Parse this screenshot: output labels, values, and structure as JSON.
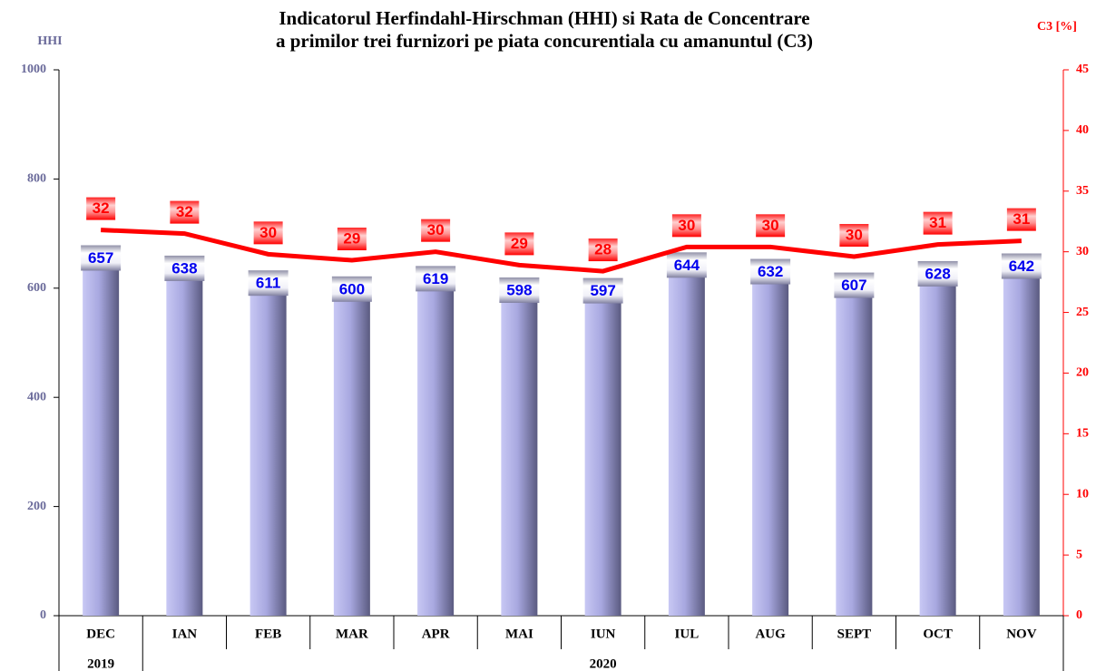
{
  "chart_data": {
    "type": "bar-line",
    "title": [
      "Indicatorul Herfindahl-Hirschman (HHI) si Rata de Concentrare",
      "a primilor trei furnizori pe piata concurentiala cu amanuntul (C3)"
    ],
    "y_label": "HHI",
    "y2_label": "C3 [%]",
    "categories": [
      "DEC",
      "IAN",
      "FEB",
      "MAR",
      "APR",
      "MAI",
      "IUN",
      "IUL",
      "AUG",
      "SEPT",
      "OCT",
      "NOV"
    ],
    "groups": [
      {
        "label": "2019",
        "span": 1
      },
      {
        "label": "2020",
        "span": 11
      }
    ],
    "series": [
      {
        "name": "HHI",
        "type": "bar",
        "color": "#9999dd",
        "values": [
          657,
          638,
          611,
          600,
          619,
          598,
          597,
          644,
          632,
          607,
          628,
          642
        ]
      },
      {
        "name": "C3",
        "type": "line",
        "axis": "y2",
        "color": "#ff0000",
        "values": [
          31.8,
          31.5,
          29.8,
          29.3,
          30.0,
          28.9,
          28.4,
          30.4,
          30.4,
          29.6,
          30.6,
          30.9
        ],
        "value_labels": [
          "32",
          "32",
          "30",
          "29",
          "30",
          "29",
          "28",
          "30",
          "30",
          "30",
          "31",
          "31"
        ]
      }
    ],
    "ylim": [
      0,
      1000
    ],
    "yticks": [
      0,
      200,
      400,
      600,
      800,
      1000
    ],
    "y2lim": [
      0,
      45
    ],
    "y2ticks": [
      0,
      5,
      10,
      15,
      20,
      25,
      30,
      35,
      40,
      45
    ],
    "grid": false
  }
}
